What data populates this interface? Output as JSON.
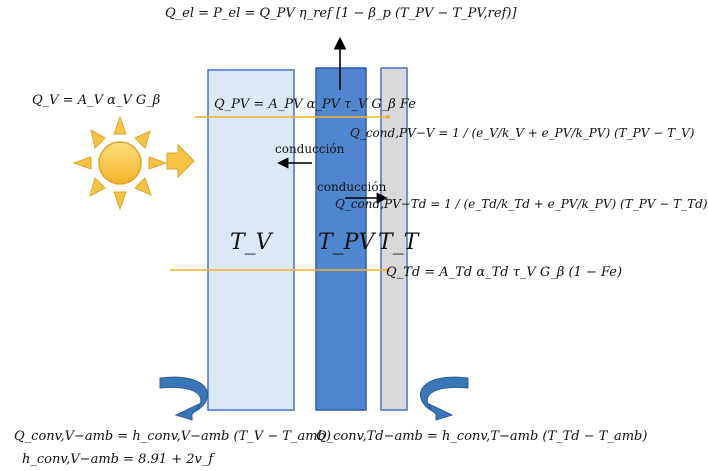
{
  "equations": {
    "q_el": "Q_el = P_el = Q_PV η_ref [1 − β_p (T_PV − T_PV,ref)]",
    "q_v": "Q_V = A_V α_V G_β",
    "q_pv": "Q_PV = A_PV α_PV τ_V G_β Fe",
    "q_cond_pv_v": "Q_cond,PV−V = 1 / (e_V/k_V + e_PV/k_PV) (T_PV − T_V)",
    "q_cond_pv_td": "Q_cond,PV−Td = 1 / (e_Td/k_Td + e_PV/k_PV) (T_PV − T_Td)",
    "q_td": "Q_Td = A_Td α_Td τ_V G_β (1 − Fe)",
    "q_conv_v_amb": "Q_conv,V−amb = h_conv,V−amb (T_V − T_amb)",
    "h_conv_v_amb": "h_conv,V−amb = 8.91 + 2v_f",
    "q_conv_td_amb": "Q_conv,Td−amb = h_conv,T−amb (T_Td − T_amb)"
  },
  "labels": {
    "conduccion_1": "conducción",
    "conduccion_2": "conducción",
    "layer_v": "T_V",
    "layer_pv": "T_PV",
    "layer_t": "T_T"
  },
  "icons": [
    "sun-icon",
    "heat-arrow-icon",
    "curved-arrow-left-icon",
    "curved-arrow-right-icon"
  ],
  "colors": {
    "glass_fill": "#dce8f5",
    "glass_stroke": "#4a72c4",
    "pv_fill": "#4f86cf",
    "pv_stroke": "#2f5fa6",
    "thermal_fill": "#d9d9d9",
    "thermal_stroke": "#4a72c4",
    "sun": "#f6c343",
    "sun_stroke": "#e0a52a",
    "ray": "#f0b429",
    "curved_arrow": "#3a76b8"
  }
}
